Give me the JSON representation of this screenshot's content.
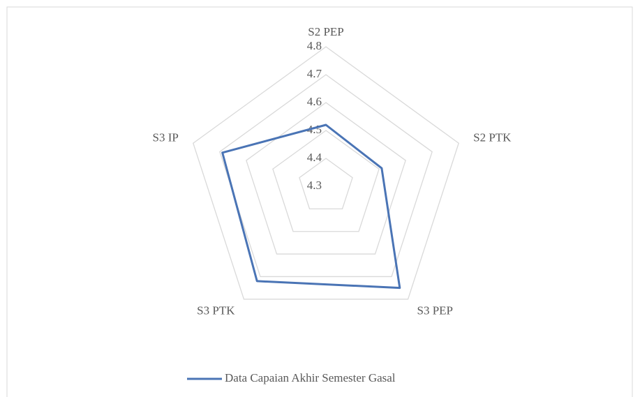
{
  "chart_data": {
    "type": "radar",
    "categories": [
      "S2 PEP",
      "S2 PTK",
      "S3 PEP",
      "S3 PTK",
      "S3 IP"
    ],
    "series": [
      {
        "name": "Data Capaian Akhir Semester Gasal",
        "color": "#4a74b5",
        "values": [
          4.52,
          4.51,
          4.75,
          4.72,
          4.69
        ]
      }
    ],
    "ylim": [
      4.3,
      4.8
    ],
    "yticks": [
      4.3,
      4.4,
      4.5,
      4.6,
      4.7,
      4.8
    ],
    "grid": true,
    "legend": "bottom"
  }
}
